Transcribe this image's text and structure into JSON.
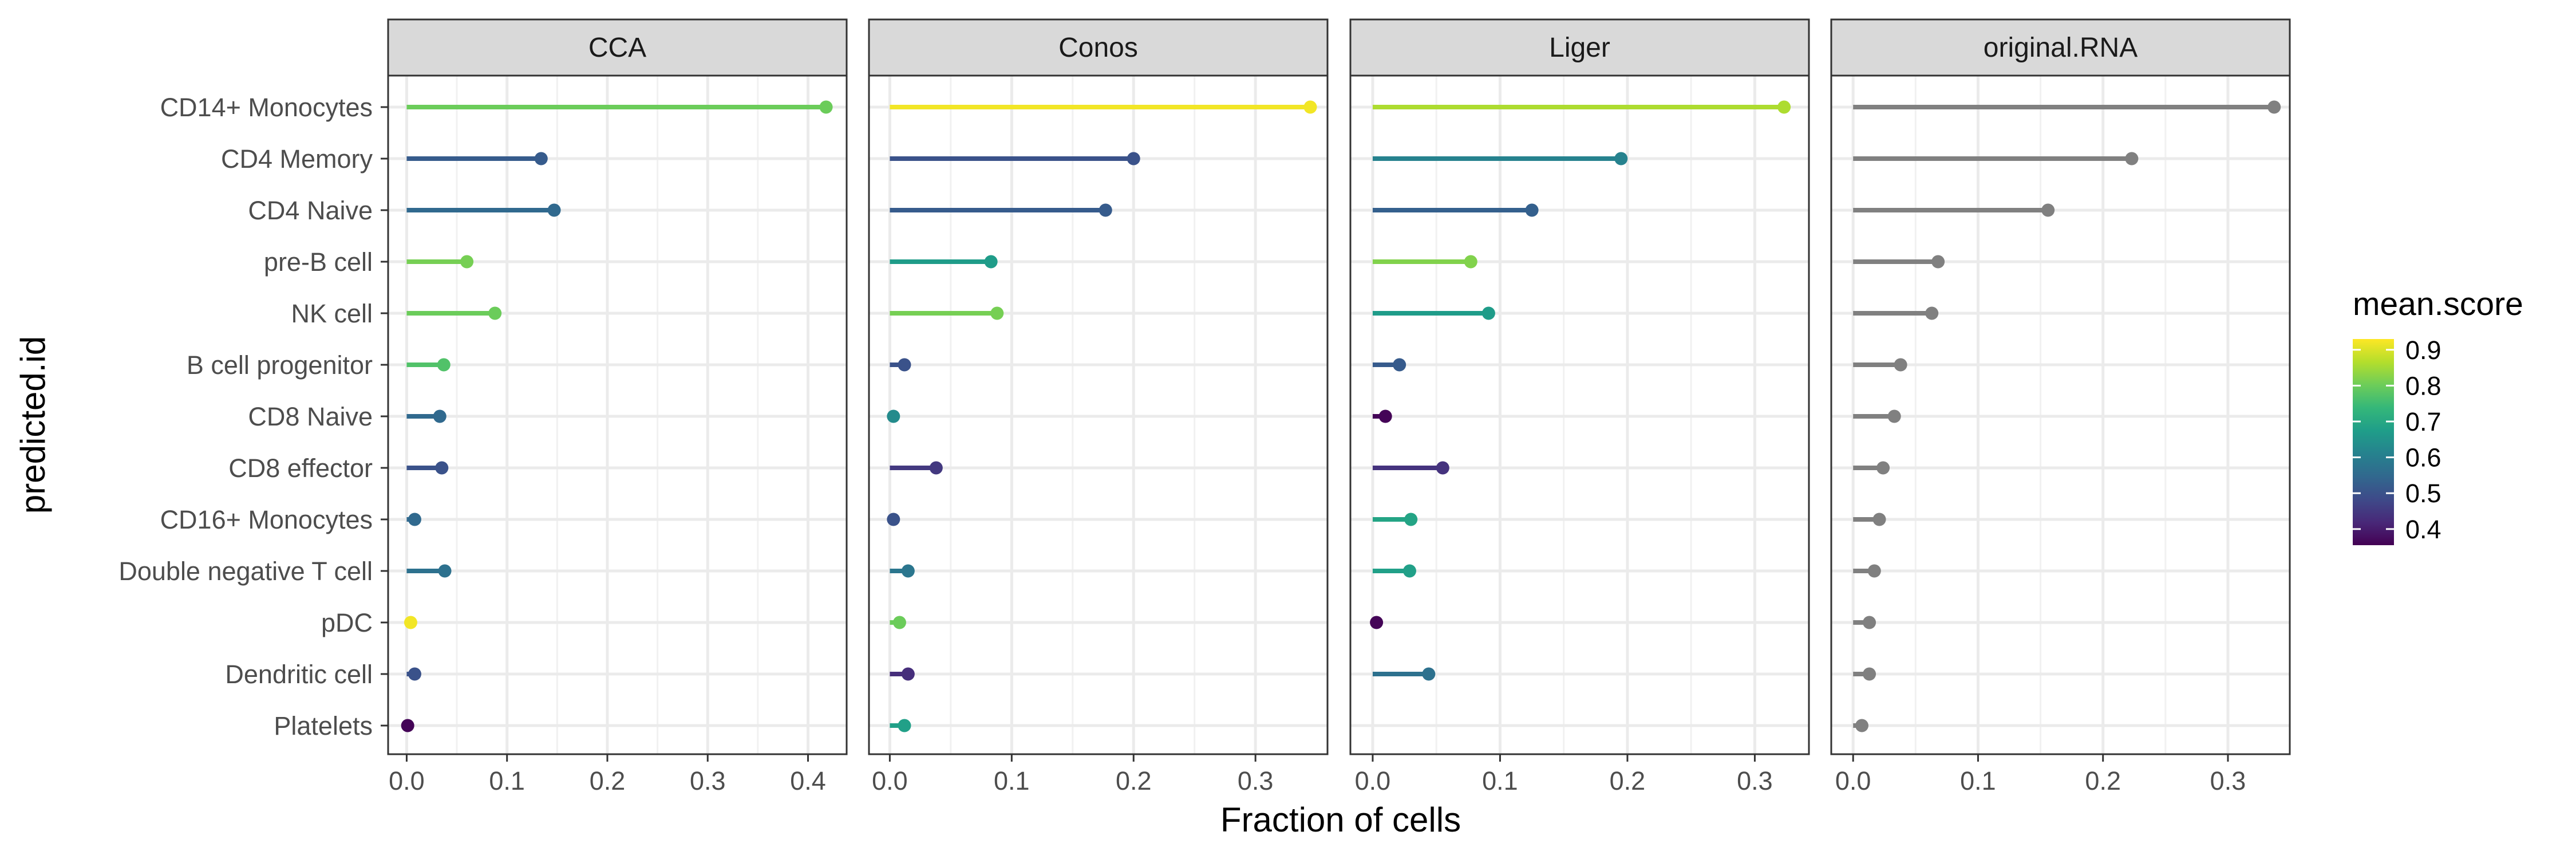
{
  "chart_data": {
    "type": "lollipop",
    "xlabel": "Fraction of cells",
    "ylabel": "predicted.id",
    "categories": [
      "CD14+ Monocytes",
      "CD4 Memory",
      "CD4 Naive",
      "pre-B cell",
      "NK cell",
      "B cell progenitor",
      "CD8 Naive",
      "CD8 effector",
      "CD16+ Monocytes",
      "Double negative T cell",
      "pDC",
      "Dendritic cell",
      "Platelets"
    ],
    "legend": {
      "title": "mean.score",
      "ticks": [
        "0.9",
        "0.8",
        "0.7",
        "0.6",
        "0.5",
        "0.4"
      ],
      "range": [
        0.355,
        0.93
      ],
      "placement": "right"
    },
    "grid": true,
    "panels": [
      {
        "name": "CCA",
        "xlim": [
          -0.0185,
          0.4385
        ],
        "xticks": [
          "0.0",
          "0.1",
          "0.2",
          "0.3",
          "0.4"
        ],
        "values": [
          0.418,
          0.134,
          0.147,
          0.06,
          0.088,
          0.037,
          0.033,
          0.035,
          0.008,
          0.038,
          0.004,
          0.008,
          0.001
        ],
        "scores": [
          0.8,
          0.52,
          0.55,
          0.81,
          0.8,
          0.77,
          0.55,
          0.5,
          0.55,
          0.57,
          0.92,
          0.5,
          0.36
        ]
      },
      {
        "name": "Conos",
        "xlim": [
          -0.0171,
          0.3591
        ],
        "xticks": [
          "0.0",
          "0.1",
          "0.2",
          "0.3"
        ],
        "values": [
          0.345,
          0.2,
          0.177,
          0.083,
          0.088,
          0.012,
          0.003,
          0.038,
          0.003,
          0.015,
          0.008,
          0.015,
          0.012
        ],
        "scores": [
          0.92,
          0.5,
          0.52,
          0.67,
          0.81,
          0.5,
          0.63,
          0.45,
          0.5,
          0.58,
          0.8,
          0.43,
          0.68
        ]
      },
      {
        "name": "Liger",
        "xlim": [
          -0.0175,
          0.3425
        ],
        "xticks": [
          "0.0",
          "0.1",
          "0.2",
          "0.3"
        ],
        "values": [
          0.323,
          0.195,
          0.125,
          0.077,
          0.091,
          0.021,
          0.01,
          0.055,
          0.03,
          0.029,
          0.003,
          0.044,
          null
        ],
        "scores": [
          0.86,
          0.61,
          0.53,
          0.82,
          0.67,
          0.52,
          0.36,
          0.44,
          0.69,
          0.68,
          0.36,
          0.57,
          null
        ]
      },
      {
        "name": "original.RNA",
        "xlim": [
          -0.0175,
          0.3495
        ],
        "xticks": [
          "0.0",
          "0.1",
          "0.2",
          "0.3"
        ],
        "values": [
          0.337,
          0.223,
          0.156,
          0.068,
          0.063,
          0.038,
          0.033,
          0.024,
          0.021,
          0.017,
          0.013,
          0.013,
          0.007
        ],
        "scores": [
          null,
          null,
          null,
          null,
          null,
          null,
          null,
          null,
          null,
          null,
          null,
          null,
          null
        ]
      }
    ]
  }
}
